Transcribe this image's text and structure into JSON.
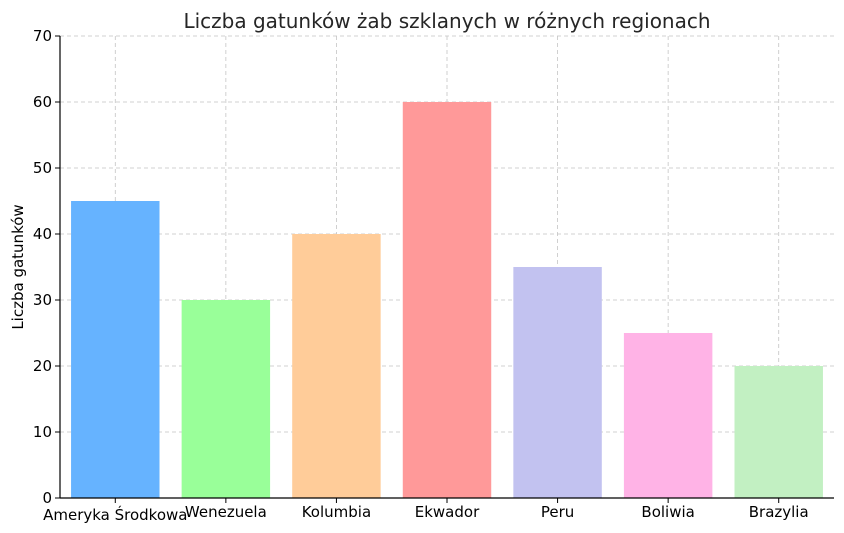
{
  "chart_data": {
    "type": "bar",
    "title": "Liczba gatunków żab szklanych w różnych regionach",
    "xlabel": "",
    "ylabel": "Liczba gatunków",
    "categories": [
      "Ameryka Środkowa",
      "Wenezuela",
      "Kolumbia",
      "Ekwador",
      "Peru",
      "Boliwia",
      "Brazylia"
    ],
    "values": [
      45,
      30,
      40,
      60,
      35,
      25,
      20
    ],
    "colors": [
      "#66b3ff",
      "#99ff99",
      "#ffcc99",
      "#ff9999",
      "#c2c2f0",
      "#ffb3e6",
      "#c2f0c2"
    ],
    "ylim": [
      0,
      70
    ],
    "yticks": [
      "0",
      "10",
      "20",
      "30",
      "40",
      "50",
      "60",
      "70"
    ],
    "grid": true,
    "legend": false
  }
}
